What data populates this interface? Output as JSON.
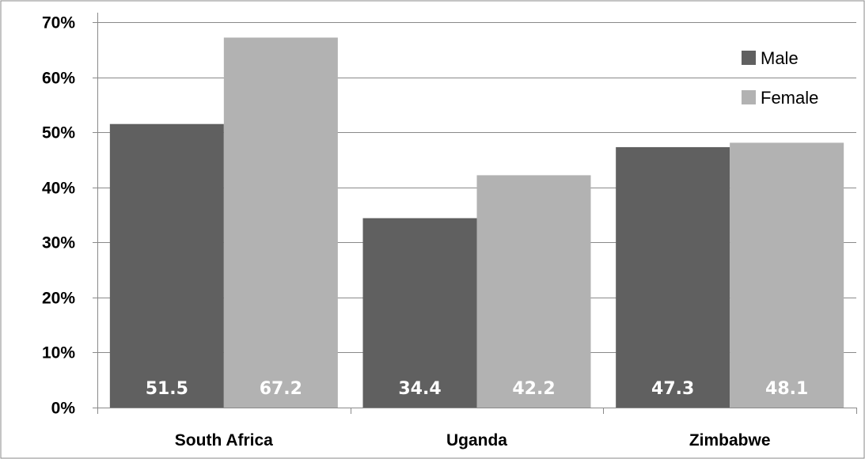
{
  "chart_data": {
    "type": "bar",
    "title": "",
    "xlabel": "",
    "ylabel": "",
    "categories": [
      "South Africa",
      "Uganda",
      "Zimbabwe"
    ],
    "series": [
      {
        "name": "Male",
        "values": [
          51.5,
          34.4,
          47.3
        ],
        "color": "#606060"
      },
      {
        "name": "Female",
        "values": [
          67.2,
          42.2,
          48.1
        ],
        "color": "#b2b2b2"
      }
    ],
    "data_labels": [
      [
        "51.5",
        "34.4",
        "47.3"
      ],
      [
        "67.2",
        "42.2",
        "48.1"
      ]
    ],
    "ylim": [
      0,
      70
    ],
    "y_ticks": [
      0,
      10,
      20,
      30,
      40,
      50,
      60,
      70
    ],
    "y_tick_labels": [
      "0%",
      "10%",
      "20%",
      "30%",
      "40%",
      "50%",
      "60%",
      "70%"
    ],
    "grid": true,
    "legend_position": "top-right"
  }
}
